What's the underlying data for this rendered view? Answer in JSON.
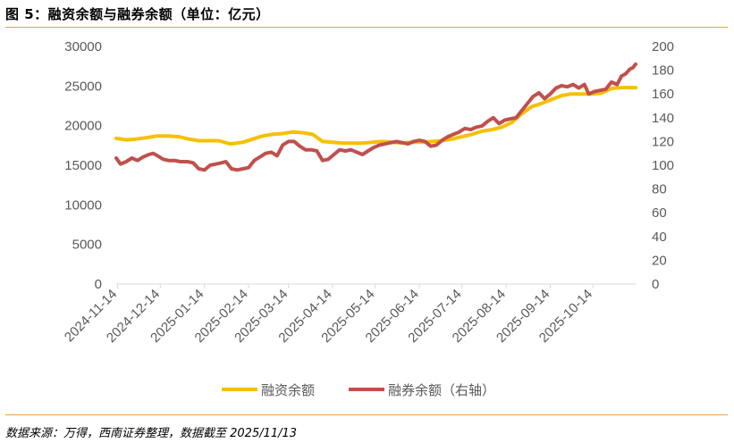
{
  "figure": {
    "title": "图 5：融资余额与融券余额（单位：亿元）",
    "source": "数据来源：万得，西南证券整理，数据截至 2025/11/13"
  },
  "colors": {
    "financing": "#F5C000",
    "lending": "#C0504D",
    "axis": "#D9D9D9",
    "tick_text": "#595959",
    "rule": "#E8A23C"
  },
  "chart_data": {
    "type": "line",
    "x_range": [
      "2024-11-13",
      "2025-11-13"
    ],
    "x_ticks": [
      "2024-11-14",
      "2024-12-14",
      "2025-01-14",
      "2025-02-14",
      "2025-03-14",
      "2025-04-14",
      "2025-05-14",
      "2025-06-14",
      "2025-07-14",
      "2025-08-14",
      "2025-09-14",
      "2025-10-14"
    ],
    "y_left": {
      "ticks": [
        "0",
        "5000",
        "10000",
        "15000",
        "20000",
        "25000",
        "30000"
      ],
      "range": [
        0,
        30000
      ]
    },
    "y_right": {
      "ticks": [
        "0",
        "20",
        "40",
        "60",
        "80",
        "100",
        "120",
        "140",
        "160",
        "180",
        "200"
      ],
      "range": [
        0,
        200
      ]
    },
    "grid": false,
    "legend": "bottom-center",
    "series": [
      {
        "name": "融资余额",
        "axis": "left",
        "points": [
          [
            "2024-11-13",
            18400
          ],
          [
            "2024-11-20",
            18200
          ],
          [
            "2024-11-27",
            18300
          ],
          [
            "2024-12-05",
            18500
          ],
          [
            "2024-12-12",
            18700
          ],
          [
            "2024-12-20",
            18700
          ],
          [
            "2024-12-27",
            18600
          ],
          [
            "2025-01-03",
            18300
          ],
          [
            "2025-01-10",
            18100
          ],
          [
            "2025-01-17",
            18100
          ],
          [
            "2025-01-24",
            18100
          ],
          [
            "2025-02-01",
            17700
          ],
          [
            "2025-02-10",
            17900
          ],
          [
            "2025-02-17",
            18300
          ],
          [
            "2025-02-24",
            18700
          ],
          [
            "2025-03-03",
            18900
          ],
          [
            "2025-03-10",
            19000
          ],
          [
            "2025-03-17",
            19200
          ],
          [
            "2025-03-24",
            19100
          ],
          [
            "2025-03-31",
            18900
          ],
          [
            "2025-04-07",
            18000
          ],
          [
            "2025-04-14",
            17900
          ],
          [
            "2025-04-21",
            17800
          ],
          [
            "2025-04-28",
            17800
          ],
          [
            "2025-05-05",
            17800
          ],
          [
            "2025-05-12",
            17900
          ],
          [
            "2025-05-19",
            18000
          ],
          [
            "2025-05-26",
            17900
          ],
          [
            "2025-06-02",
            17800
          ],
          [
            "2025-06-09",
            17900
          ],
          [
            "2025-06-16",
            17900
          ],
          [
            "2025-06-23",
            18000
          ],
          [
            "2025-06-30",
            18100
          ],
          [
            "2025-07-07",
            18300
          ],
          [
            "2025-07-14",
            18600
          ],
          [
            "2025-07-21",
            18900
          ],
          [
            "2025-07-28",
            19300
          ],
          [
            "2025-08-04",
            19500
          ],
          [
            "2025-08-11",
            19800
          ],
          [
            "2025-08-18",
            20400
          ],
          [
            "2025-08-25",
            21500
          ],
          [
            "2025-09-01",
            22400
          ],
          [
            "2025-09-08",
            22800
          ],
          [
            "2025-09-15",
            23300
          ],
          [
            "2025-09-22",
            23800
          ],
          [
            "2025-09-29",
            24000
          ],
          [
            "2025-10-06",
            24000
          ],
          [
            "2025-10-13",
            24000
          ],
          [
            "2025-10-20",
            24100
          ],
          [
            "2025-10-27",
            24700
          ],
          [
            "2025-11-03",
            24800
          ],
          [
            "2025-11-13",
            24800
          ]
        ]
      },
      {
        "name": "融券余额（右轴）",
        "axis": "right",
        "points": [
          [
            "2024-11-13",
            106
          ],
          [
            "2024-11-16",
            101
          ],
          [
            "2024-11-20",
            103
          ],
          [
            "2024-11-24",
            106
          ],
          [
            "2024-11-28",
            104
          ],
          [
            "2024-12-02",
            107
          ],
          [
            "2024-12-06",
            109
          ],
          [
            "2024-12-09",
            110
          ],
          [
            "2024-12-12",
            108
          ],
          [
            "2024-12-16",
            105
          ],
          [
            "2024-12-20",
            104
          ],
          [
            "2024-12-24",
            104
          ],
          [
            "2024-12-28",
            103
          ],
          [
            "2025-01-02",
            103
          ],
          [
            "2025-01-06",
            102
          ],
          [
            "2025-01-10",
            97
          ],
          [
            "2025-01-14",
            96
          ],
          [
            "2025-01-18",
            100
          ],
          [
            "2025-01-22",
            101
          ],
          [
            "2025-01-26",
            102
          ],
          [
            "2025-01-29",
            103
          ],
          [
            "2025-02-02",
            97
          ],
          [
            "2025-02-06",
            96
          ],
          [
            "2025-02-10",
            97
          ],
          [
            "2025-02-14",
            98
          ],
          [
            "2025-02-18",
            104
          ],
          [
            "2025-02-22",
            107
          ],
          [
            "2025-02-26",
            110
          ],
          [
            "2025-03-02",
            111
          ],
          [
            "2025-03-06",
            108
          ],
          [
            "2025-03-10",
            117
          ],
          [
            "2025-03-14",
            120
          ],
          [
            "2025-03-18",
            120
          ],
          [
            "2025-03-22",
            116
          ],
          [
            "2025-03-26",
            113
          ],
          [
            "2025-03-30",
            113
          ],
          [
            "2025-04-03",
            112
          ],
          [
            "2025-04-07",
            104
          ],
          [
            "2025-04-11",
            105
          ],
          [
            "2025-04-15",
            109
          ],
          [
            "2025-04-19",
            113
          ],
          [
            "2025-04-23",
            112
          ],
          [
            "2025-04-27",
            113
          ],
          [
            "2025-05-01",
            111
          ],
          [
            "2025-05-05",
            109
          ],
          [
            "2025-05-09",
            112
          ],
          [
            "2025-05-13",
            115
          ],
          [
            "2025-05-17",
            117
          ],
          [
            "2025-05-21",
            118
          ],
          [
            "2025-05-25",
            119
          ],
          [
            "2025-05-29",
            120
          ],
          [
            "2025-06-02",
            119
          ],
          [
            "2025-06-06",
            118
          ],
          [
            "2025-06-10",
            120
          ],
          [
            "2025-06-14",
            121
          ],
          [
            "2025-06-18",
            120
          ],
          [
            "2025-06-22",
            116
          ],
          [
            "2025-06-26",
            117
          ],
          [
            "2025-06-30",
            121
          ],
          [
            "2025-07-04",
            124
          ],
          [
            "2025-07-08",
            126
          ],
          [
            "2025-07-12",
            128
          ],
          [
            "2025-07-16",
            131
          ],
          [
            "2025-07-20",
            130
          ],
          [
            "2025-07-24",
            132
          ],
          [
            "2025-07-28",
            133
          ],
          [
            "2025-08-01",
            137
          ],
          [
            "2025-08-05",
            140
          ],
          [
            "2025-08-09",
            135
          ],
          [
            "2025-08-13",
            138
          ],
          [
            "2025-08-17",
            139
          ],
          [
            "2025-08-21",
            140
          ],
          [
            "2025-08-25",
            146
          ],
          [
            "2025-08-29",
            152
          ],
          [
            "2025-09-02",
            158
          ],
          [
            "2025-09-06",
            161
          ],
          [
            "2025-09-10",
            156
          ],
          [
            "2025-09-14",
            160
          ],
          [
            "2025-09-18",
            165
          ],
          [
            "2025-09-22",
            167
          ],
          [
            "2025-09-26",
            166
          ],
          [
            "2025-09-30",
            168
          ],
          [
            "2025-10-04",
            165
          ],
          [
            "2025-10-08",
            168
          ],
          [
            "2025-10-11",
            160
          ],
          [
            "2025-10-15",
            162
          ],
          [
            "2025-10-19",
            163
          ],
          [
            "2025-10-23",
            164
          ],
          [
            "2025-10-27",
            170
          ],
          [
            "2025-10-31",
            168
          ],
          [
            "2025-11-03",
            175
          ],
          [
            "2025-11-06",
            177
          ],
          [
            "2025-11-09",
            181
          ],
          [
            "2025-11-11",
            182
          ],
          [
            "2025-11-13",
            185
          ]
        ]
      }
    ]
  }
}
